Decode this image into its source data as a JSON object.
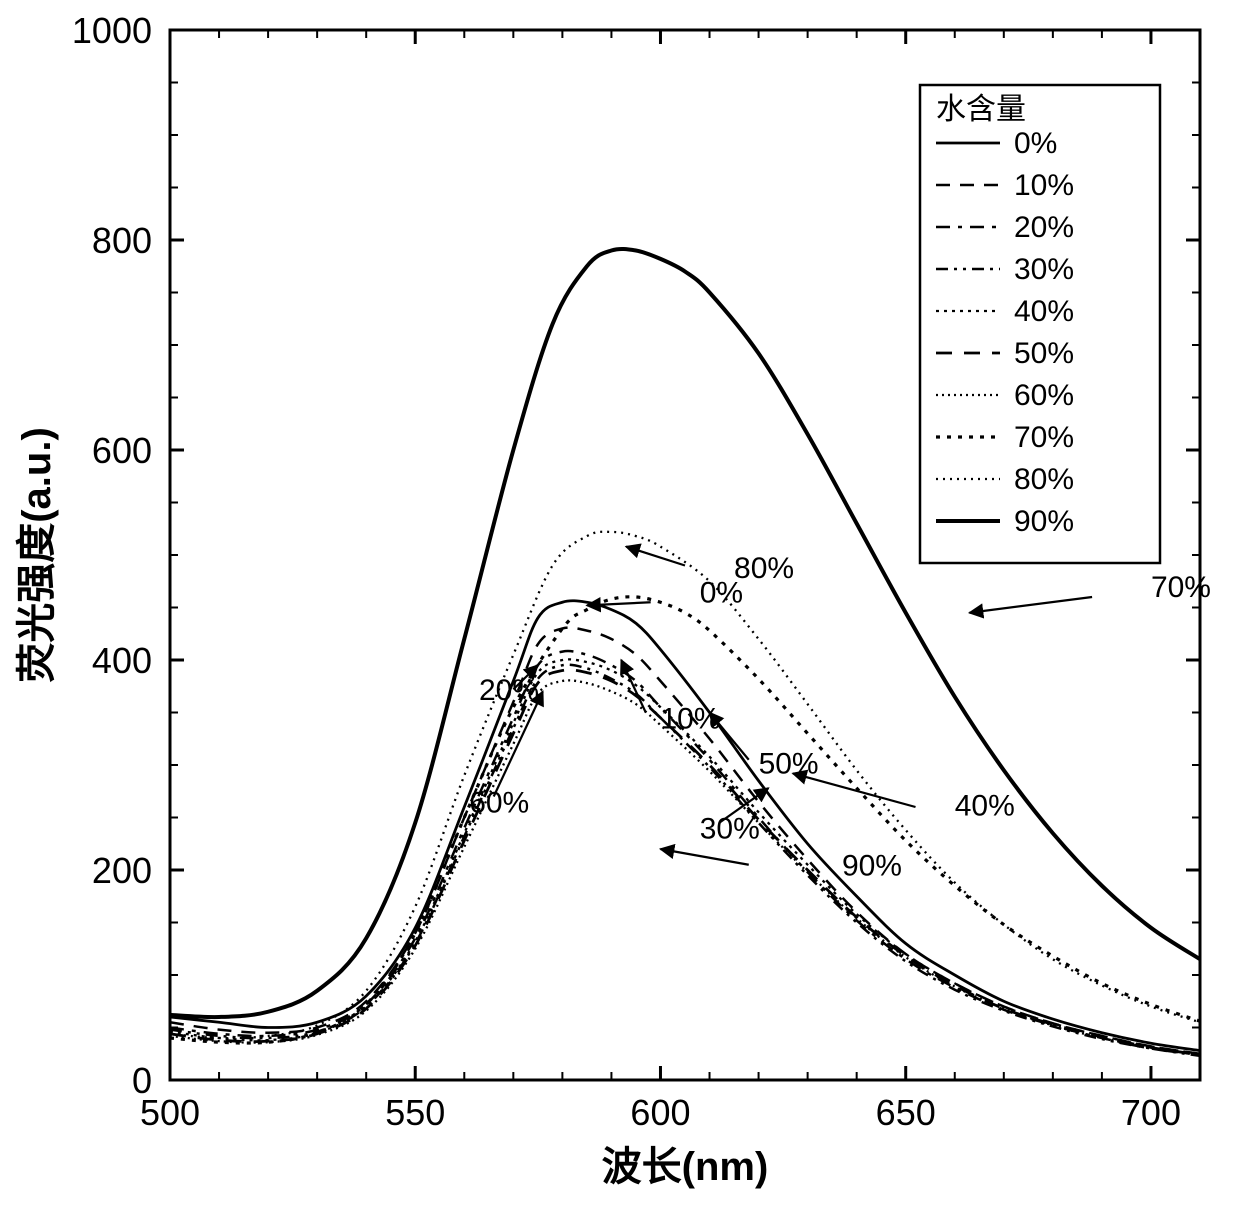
{
  "chart": {
    "type": "line",
    "background_color": "#ffffff",
    "stroke_color": "#000000",
    "axis_line_width": 3,
    "xlabel": "波长(nm)",
    "ylabel": "荧光强度(a.u.)",
    "axis_title_fontsize": 40,
    "axis_title_fontweight": "bold",
    "tick_label_fontsize": 36,
    "xlim": [
      500,
      710
    ],
    "ylim": [
      0,
      1000
    ],
    "x_major_ticks": [
      500,
      550,
      600,
      650,
      700
    ],
    "y_major_ticks": [
      0,
      200,
      400,
      600,
      800,
      1000
    ],
    "x_minor_step": 10,
    "y_minor_step": 50,
    "major_tick_len": 14,
    "minor_tick_len": 8,
    "series": [
      {
        "label": "0%",
        "width": 2.8,
        "dash": "",
        "points": [
          [
            500,
            60
          ],
          [
            510,
            55
          ],
          [
            520,
            50
          ],
          [
            530,
            55
          ],
          [
            540,
            80
          ],
          [
            550,
            145
          ],
          [
            560,
            260
          ],
          [
            570,
            380
          ],
          [
            575,
            440
          ],
          [
            580,
            455
          ],
          [
            585,
            455
          ],
          [
            590,
            448
          ],
          [
            595,
            435
          ],
          [
            600,
            410
          ],
          [
            610,
            350
          ],
          [
            620,
            285
          ],
          [
            630,
            225
          ],
          [
            640,
            175
          ],
          [
            650,
            130
          ],
          [
            660,
            100
          ],
          [
            670,
            75
          ],
          [
            680,
            58
          ],
          [
            690,
            45
          ],
          [
            700,
            35
          ],
          [
            710,
            28
          ]
        ]
      },
      {
        "label": "10%",
        "width": 2.5,
        "dash": "14,10",
        "points": [
          [
            500,
            55
          ],
          [
            510,
            48
          ],
          [
            520,
            45
          ],
          [
            530,
            50
          ],
          [
            540,
            75
          ],
          [
            550,
            140
          ],
          [
            560,
            250
          ],
          [
            570,
            360
          ],
          [
            575,
            415
          ],
          [
            580,
            430
          ],
          [
            585,
            428
          ],
          [
            590,
            420
          ],
          [
            595,
            405
          ],
          [
            600,
            380
          ],
          [
            610,
            325
          ],
          [
            620,
            265
          ],
          [
            630,
            210
          ],
          [
            640,
            160
          ],
          [
            650,
            120
          ],
          [
            660,
            92
          ],
          [
            670,
            70
          ],
          [
            680,
            54
          ],
          [
            690,
            42
          ],
          [
            700,
            32
          ],
          [
            710,
            25
          ]
        ]
      },
      {
        "label": "20%",
        "width": 2.5,
        "dash": "14,8,4,8",
        "points": [
          [
            500,
            50
          ],
          [
            510,
            44
          ],
          [
            520,
            42
          ],
          [
            530,
            48
          ],
          [
            540,
            72
          ],
          [
            550,
            135
          ],
          [
            560,
            240
          ],
          [
            570,
            345
          ],
          [
            575,
            395
          ],
          [
            580,
            408
          ],
          [
            585,
            405
          ],
          [
            590,
            395
          ],
          [
            595,
            380
          ],
          [
            600,
            355
          ],
          [
            610,
            305
          ],
          [
            620,
            250
          ],
          [
            630,
            198
          ],
          [
            640,
            152
          ],
          [
            650,
            115
          ],
          [
            660,
            88
          ],
          [
            670,
            67
          ],
          [
            680,
            52
          ],
          [
            690,
            40
          ],
          [
            700,
            30
          ],
          [
            710,
            24
          ]
        ]
      },
      {
        "label": "30%",
        "width": 2.5,
        "dash": "12,6,3,6,3,6",
        "points": [
          [
            500,
            48
          ],
          [
            510,
            42
          ],
          [
            520,
            40
          ],
          [
            530,
            46
          ],
          [
            540,
            70
          ],
          [
            550,
            130
          ],
          [
            560,
            232
          ],
          [
            570,
            335
          ],
          [
            575,
            382
          ],
          [
            580,
            395
          ],
          [
            585,
            392
          ],
          [
            590,
            382
          ],
          [
            595,
            368
          ],
          [
            600,
            345
          ],
          [
            610,
            298
          ],
          [
            620,
            245
          ],
          [
            630,
            195
          ],
          [
            640,
            150
          ],
          [
            650,
            113
          ],
          [
            660,
            86
          ],
          [
            670,
            66
          ],
          [
            680,
            51
          ],
          [
            690,
            39
          ],
          [
            700,
            30
          ],
          [
            710,
            23
          ]
        ]
      },
      {
        "label": "40%",
        "width": 2.3,
        "dash": "3,5",
        "points": [
          [
            500,
            46
          ],
          [
            510,
            40
          ],
          [
            520,
            38
          ],
          [
            530,
            45
          ],
          [
            540,
            70
          ],
          [
            550,
            132
          ],
          [
            560,
            235
          ],
          [
            570,
            340
          ],
          [
            575,
            388
          ],
          [
            580,
            400
          ],
          [
            585,
            398
          ],
          [
            590,
            390
          ],
          [
            595,
            376
          ],
          [
            600,
            355
          ],
          [
            610,
            308
          ],
          [
            620,
            255
          ],
          [
            630,
            205
          ],
          [
            640,
            158
          ],
          [
            650,
            120
          ],
          [
            660,
            92
          ],
          [
            670,
            70
          ],
          [
            680,
            54
          ],
          [
            690,
            42
          ],
          [
            700,
            32
          ],
          [
            710,
            25
          ]
        ]
      },
      {
        "label": "50%",
        "width": 2.8,
        "dash": "16,12",
        "points": [
          [
            500,
            44
          ],
          [
            510,
            38
          ],
          [
            520,
            37
          ],
          [
            530,
            44
          ],
          [
            540,
            68
          ],
          [
            550,
            128
          ],
          [
            560,
            228
          ],
          [
            570,
            330
          ],
          [
            575,
            378
          ],
          [
            580,
            390
          ],
          [
            585,
            388
          ],
          [
            590,
            380
          ],
          [
            595,
            366
          ],
          [
            600,
            345
          ],
          [
            610,
            300
          ],
          [
            620,
            248
          ],
          [
            630,
            200
          ],
          [
            640,
            155
          ],
          [
            650,
            118
          ],
          [
            660,
            90
          ],
          [
            670,
            68
          ],
          [
            680,
            53
          ],
          [
            690,
            41
          ],
          [
            700,
            31
          ],
          [
            710,
            24
          ]
        ]
      },
      {
        "label": "60%",
        "width": 2.3,
        "dash": "2,4",
        "points": [
          [
            500,
            42
          ],
          [
            510,
            37
          ],
          [
            520,
            36
          ],
          [
            530,
            43
          ],
          [
            540,
            66
          ],
          [
            550,
            125
          ],
          [
            560,
            222
          ],
          [
            570,
            320
          ],
          [
            575,
            368
          ],
          [
            580,
            380
          ],
          [
            585,
            378
          ],
          [
            590,
            370
          ],
          [
            595,
            358
          ],
          [
            600,
            338
          ],
          [
            610,
            294
          ],
          [
            620,
            245
          ],
          [
            630,
            198
          ],
          [
            640,
            154
          ],
          [
            650,
            117
          ],
          [
            660,
            89
          ],
          [
            670,
            68
          ],
          [
            680,
            52
          ],
          [
            690,
            40
          ],
          [
            700,
            31
          ],
          [
            710,
            24
          ]
        ]
      },
      {
        "label": "70%",
        "width": 3.2,
        "dash": "4,7",
        "points": [
          [
            500,
            40
          ],
          [
            510,
            36
          ],
          [
            520,
            36
          ],
          [
            530,
            45
          ],
          [
            540,
            72
          ],
          [
            550,
            140
          ],
          [
            560,
            250
          ],
          [
            570,
            355
          ],
          [
            580,
            430
          ],
          [
            585,
            448
          ],
          [
            590,
            458
          ],
          [
            595,
            460
          ],
          [
            600,
            455
          ],
          [
            605,
            445
          ],
          [
            610,
            428
          ],
          [
            620,
            382
          ],
          [
            630,
            330
          ],
          [
            640,
            278
          ],
          [
            650,
            228
          ],
          [
            660,
            185
          ],
          [
            670,
            148
          ],
          [
            680,
            118
          ],
          [
            690,
            92
          ],
          [
            700,
            72
          ],
          [
            710,
            56
          ]
        ]
      },
      {
        "label": "80%",
        "width": 2.3,
        "dash": "2,5",
        "points": [
          [
            500,
            44
          ],
          [
            510,
            40
          ],
          [
            520,
            42
          ],
          [
            530,
            52
          ],
          [
            540,
            85
          ],
          [
            550,
            165
          ],
          [
            560,
            290
          ],
          [
            570,
            405
          ],
          [
            578,
            490
          ],
          [
            585,
            518
          ],
          [
            590,
            522
          ],
          [
            595,
            518
          ],
          [
            600,
            508
          ],
          [
            610,
            475
          ],
          [
            620,
            420
          ],
          [
            630,
            358
          ],
          [
            640,
            295
          ],
          [
            650,
            238
          ],
          [
            660,
            188
          ],
          [
            670,
            148
          ],
          [
            680,
            115
          ],
          [
            690,
            90
          ],
          [
            700,
            70
          ],
          [
            710,
            55
          ]
        ]
      },
      {
        "label": "90%",
        "width": 4.0,
        "dash": "",
        "points": [
          [
            500,
            62
          ],
          [
            510,
            60
          ],
          [
            520,
            65
          ],
          [
            530,
            85
          ],
          [
            540,
            135
          ],
          [
            550,
            245
          ],
          [
            560,
            420
          ],
          [
            570,
            600
          ],
          [
            578,
            720
          ],
          [
            585,
            775
          ],
          [
            590,
            790
          ],
          [
            595,
            790
          ],
          [
            600,
            782
          ],
          [
            605,
            770
          ],
          [
            610,
            750
          ],
          [
            620,
            692
          ],
          [
            630,
            615
          ],
          [
            640,
            530
          ],
          [
            650,
            445
          ],
          [
            660,
            365
          ],
          [
            670,
            295
          ],
          [
            680,
            235
          ],
          [
            690,
            185
          ],
          [
            700,
            145
          ],
          [
            710,
            115
          ]
        ]
      }
    ],
    "legend": {
      "title": "水含量",
      "title_fontsize": 30,
      "item_fontsize": 30,
      "box_stroke": "#000000",
      "box_fill": "#ffffff"
    },
    "annotations": [
      {
        "text": "90%",
        "tx": 637,
        "ty": 195,
        "ax1": 618,
        "ay1": 205,
        "ax2": 600,
        "ay2": 220
      },
      {
        "text": "80%",
        "tx": 615,
        "ty": 478,
        "ax1": 605,
        "ay1": 490,
        "ax2": 593,
        "ay2": 508
      },
      {
        "text": "0%",
        "tx": 608,
        "ty": 455,
        "ax1": 598,
        "ay1": 455,
        "ax2": 585,
        "ay2": 452
      },
      {
        "text": "70%",
        "tx": 700,
        "ty": 460,
        "ax1": 688,
        "ay1": 460,
        "ax2": 663,
        "ay2": 445
      },
      {
        "text": "20%",
        "tx": 563,
        "ty": 362,
        "ax1": 570,
        "ay1": 372,
        "ax2": 575,
        "ay2": 395
      },
      {
        "text": "10%",
        "tx": 600,
        "ty": 335,
        "ax1": 597,
        "ay1": 350,
        "ax2": 592,
        "ay2": 400
      },
      {
        "text": "60%",
        "tx": 561,
        "ty": 255,
        "ax1": 566,
        "ay1": 270,
        "ax2": 576,
        "ay2": 370
      },
      {
        "text": "50%",
        "tx": 620,
        "ty": 292,
        "ax1": 618,
        "ay1": 305,
        "ax2": 610,
        "ay2": 350
      },
      {
        "text": "40%",
        "tx": 660,
        "ty": 252,
        "ax1": 652,
        "ay1": 260,
        "ax2": 627,
        "ay2": 292
      },
      {
        "text": "30%",
        "tx": 608,
        "ty": 230,
        "ax1": 612,
        "ay1": 245,
        "ax2": 622,
        "ay2": 278
      }
    ],
    "annotation_fontsize": 30
  }
}
